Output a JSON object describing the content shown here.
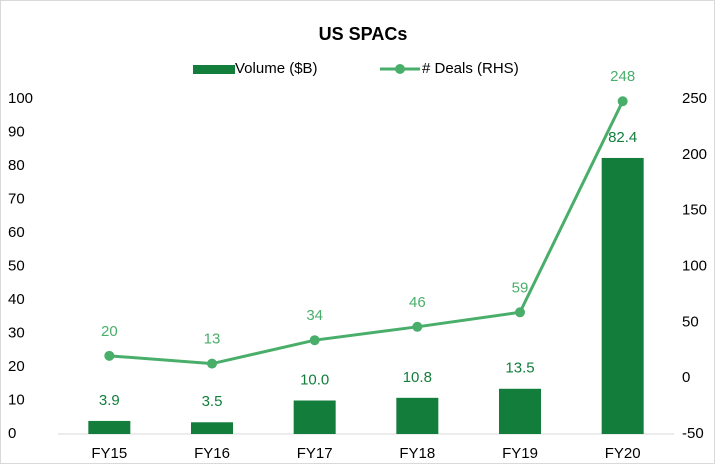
{
  "chart_data": {
    "type": "bar",
    "title": "US SPACs",
    "legend": "top",
    "categories": [
      "FY15",
      "FY16",
      "FY17",
      "FY18",
      "FY19",
      "FY20"
    ],
    "series": [
      {
        "name": "Volume ($B)",
        "type": "bar",
        "color": "#137d3c",
        "values": [
          3.9,
          3.5,
          10.0,
          10.8,
          13.5,
          82.4
        ],
        "value_labels": [
          "3.9",
          "3.5",
          "10.0",
          "10.8",
          "13.5",
          "82.4"
        ]
      },
      {
        "name": "# Deals (RHS)",
        "type": "line",
        "axis": "y2",
        "color": "#4aae6b",
        "values": [
          20,
          13,
          34,
          46,
          59,
          248
        ]
      }
    ],
    "ylim": [
      0,
      100
    ],
    "yticks": [
      0,
      10,
      20,
      30,
      40,
      50,
      60,
      70,
      80,
      90,
      100
    ],
    "y2lim": [
      -50,
      250
    ],
    "y2ticks": [
      -50,
      0,
      50,
      100,
      150,
      200,
      250
    ]
  }
}
